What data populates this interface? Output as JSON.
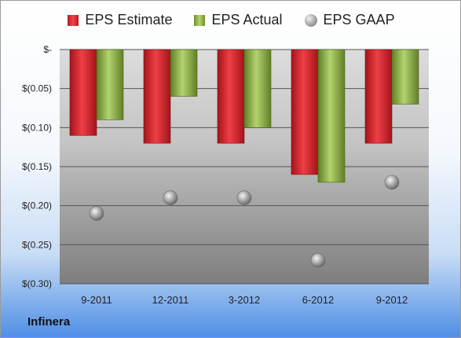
{
  "chart_data": {
    "type": "bar",
    "categories": [
      "9-2011",
      "12-2011",
      "3-2012",
      "6-2012",
      "9-2012"
    ],
    "series": [
      {
        "name": "EPS Estimate",
        "values": [
          -0.11,
          -0.12,
          -0.12,
          -0.16,
          -0.12
        ],
        "color": "#d42a30"
      },
      {
        "name": "EPS Actual",
        "values": [
          -0.09,
          -0.06,
          -0.1,
          -0.17,
          -0.07
        ],
        "color": "#8fb350"
      },
      {
        "name": "EPS GAAP",
        "values": [
          -0.21,
          -0.19,
          -0.19,
          -0.27,
          -0.17
        ],
        "color": "#a6a6a6",
        "marker": "sphere"
      }
    ],
    "ylim": [
      -0.3,
      0
    ],
    "yticks": [
      {
        "value": 0,
        "label": "$-"
      },
      {
        "value": -0.05,
        "label": "$(0.05)"
      },
      {
        "value": -0.1,
        "label": "$(0.10)"
      },
      {
        "value": -0.15,
        "label": "$(0.15)"
      },
      {
        "value": -0.2,
        "label": "$(0.20)"
      },
      {
        "value": -0.25,
        "label": "$(0.25)"
      },
      {
        "value": -0.3,
        "label": "$(0.30)"
      }
    ],
    "grid": true,
    "legend_position": "top"
  },
  "company": "Infinera"
}
